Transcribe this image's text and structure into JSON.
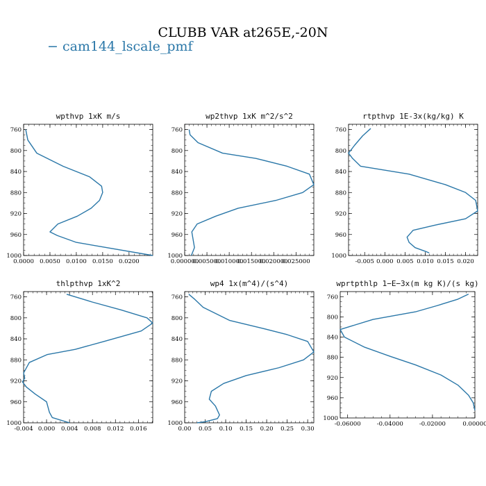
{
  "title": "CLUBB VAR at265E,-20N",
  "legend": [
    {
      "name": "− cam144_lscale_pmf",
      "color": "#2a77a8"
    }
  ],
  "chart_data": [
    {
      "type": "line",
      "title": "wpthvp   1xK m/s",
      "xlim": [
        0.0,
        0.0245
      ],
      "ylim": [
        750,
        1000
      ],
      "y_inverted": true,
      "xticks": [
        0.0,
        0.005,
        0.01,
        0.015,
        0.02
      ],
      "xtick_labels": [
        "0.0000",
        "0.0050",
        "0.0100",
        "0.0150",
        "0.0200"
      ],
      "yticks": [
        760,
        800,
        840,
        880,
        920,
        960,
        1000
      ],
      "series": [
        {
          "x": [
            0.0004,
            0.0008,
            0.0025,
            0.0075,
            0.0125,
            0.0148,
            0.015,
            0.0144,
            0.0128,
            0.0102,
            0.0065,
            0.005,
            0.0064,
            0.01,
            0.0245
          ],
          "y": [
            760,
            780,
            805,
            830,
            850,
            868,
            880,
            895,
            910,
            925,
            940,
            955,
            962,
            975,
            1000
          ]
        }
      ]
    },
    {
      "type": "line",
      "title": "wp2thvp   1xK m^2/s^2",
      "xlim": [
        0.0,
        0.029
      ],
      "ylim": [
        750,
        1000
      ],
      "y_inverted": true,
      "xticks": [
        0.0,
        0.005,
        0.01,
        0.015,
        0.02,
        0.025
      ],
      "xtick_labels": [
        "0.000000",
        "0.005000",
        "0.010000",
        "0.015000",
        "0.020000",
        "0.025000"
      ],
      "yticks": [
        760,
        800,
        840,
        880,
        920,
        960,
        1000
      ],
      "series": [
        {
          "x": [
            0.001,
            0.0012,
            0.003,
            0.0085,
            0.016,
            0.023,
            0.028,
            0.029,
            0.0265,
            0.0205,
            0.012,
            0.007,
            0.0028,
            0.0016,
            0.0018,
            0.0022,
            0.0015
          ],
          "y": [
            760,
            770,
            785,
            805,
            815,
            830,
            845,
            865,
            880,
            895,
            910,
            925,
            940,
            955,
            965,
            985,
            1000
          ]
        }
      ]
    },
    {
      "type": "line",
      "title": "rtpthvp   1E-3x(kg/kg) K",
      "xlim": [
        -0.009,
        0.023
      ],
      "ylim": [
        750,
        1000
      ],
      "y_inverted": true,
      "xticks": [
        -0.005,
        0.0,
        0.005,
        0.01,
        0.015,
        0.02
      ],
      "xtick_labels": [
        "-0.005",
        "0.000",
        "0.005",
        "0.010",
        "0.015",
        "0.020"
      ],
      "yticks": [
        760,
        800,
        840,
        880,
        920,
        960,
        1000
      ],
      "series": [
        {
          "x": [
            -0.0035,
            -0.0055,
            -0.0075,
            -0.009,
            -0.008,
            -0.006,
            0.006,
            0.015,
            0.02,
            0.0225,
            0.023,
            0.02,
            0.0125,
            0.007,
            0.0055,
            0.006,
            0.0075,
            0.01,
            0.011
          ],
          "y": [
            758,
            772,
            790,
            805,
            815,
            830,
            845,
            865,
            880,
            895,
            915,
            930,
            942,
            952,
            965,
            975,
            985,
            992,
            995
          ]
        }
      ]
    },
    {
      "type": "line",
      "title": "thlpthvp   1xK^2",
      "xlim": [
        -0.004,
        0.0185
      ],
      "ylim": [
        750,
        1000
      ],
      "y_inverted": true,
      "xticks": [
        -0.004,
        0.0,
        0.004,
        0.008,
        0.012,
        0.016
      ],
      "xtick_labels": [
        "-0.004",
        "0.000",
        "0.004",
        "0.008",
        "0.012",
        "0.016"
      ],
      "yticks": [
        760,
        800,
        840,
        880,
        920,
        960,
        1000
      ],
      "series": [
        {
          "x": [
            0.0035,
            0.008,
            0.013,
            0.0175,
            0.0185,
            0.0165,
            0.01,
            0.005,
            0.0001,
            -0.003,
            -0.004,
            -0.0038,
            -0.0042,
            -0.0035,
            -0.002,
            0.0,
            0.0005,
            0.001,
            0.004
          ],
          "y": [
            755,
            770,
            785,
            800,
            810,
            825,
            845,
            860,
            870,
            885,
            905,
            915,
            922,
            932,
            945,
            960,
            980,
            990,
            1000
          ]
        }
      ]
    },
    {
      "type": "line",
      "title": "wp4   1x(m^4)/(s^4)",
      "xlim": [
        0.0,
        0.315
      ],
      "ylim": [
        750,
        1000
      ],
      "y_inverted": true,
      "xticks": [
        0.0,
        0.05,
        0.1,
        0.15,
        0.2,
        0.25,
        0.3
      ],
      "xtick_labels": [
        "0.00",
        "0.05",
        "0.10",
        "0.15",
        "0.20",
        "0.25",
        "0.30"
      ],
      "yticks": [
        760,
        800,
        840,
        880,
        920,
        960,
        1000
      ],
      "series": [
        {
          "x": [
            0.01,
            0.025,
            0.045,
            0.11,
            0.19,
            0.25,
            0.3,
            0.315,
            0.29,
            0.23,
            0.15,
            0.095,
            0.065,
            0.06,
            0.075,
            0.085,
            0.08,
            0.05,
            0.03
          ],
          "y": [
            755,
            765,
            780,
            805,
            820,
            832,
            845,
            865,
            880,
            895,
            910,
            925,
            940,
            955,
            968,
            985,
            992,
            998,
            1000
          ]
        }
      ]
    },
    {
      "type": "line",
      "title": "wprtpthlp   1−E−3x(m kg K)/(s kg)",
      "xlim": [
        -0.0635,
        0.0
      ],
      "ylim": [
        750,
        1000
      ],
      "y_inverted": true,
      "xticks": [
        -0.06,
        -0.04,
        -0.02,
        0.0
      ],
      "xtick_labels": [
        "-0.06000",
        "-0.04000",
        "-0.02000",
        "0.00000"
      ],
      "yticks": [
        760,
        800,
        840,
        880,
        920,
        960,
        1000
      ],
      "series": [
        {
          "x": [
            -0.003,
            -0.008,
            -0.018,
            -0.028,
            -0.048,
            -0.0635,
            -0.0615,
            -0.052,
            -0.04,
            -0.028,
            -0.016,
            -0.008,
            -0.003,
            -0.0008,
            0.0
          ],
          "y": [
            755,
            765,
            778,
            790,
            805,
            825,
            840,
            860,
            878,
            895,
            915,
            935,
            955,
            970,
            985
          ]
        }
      ]
    }
  ]
}
